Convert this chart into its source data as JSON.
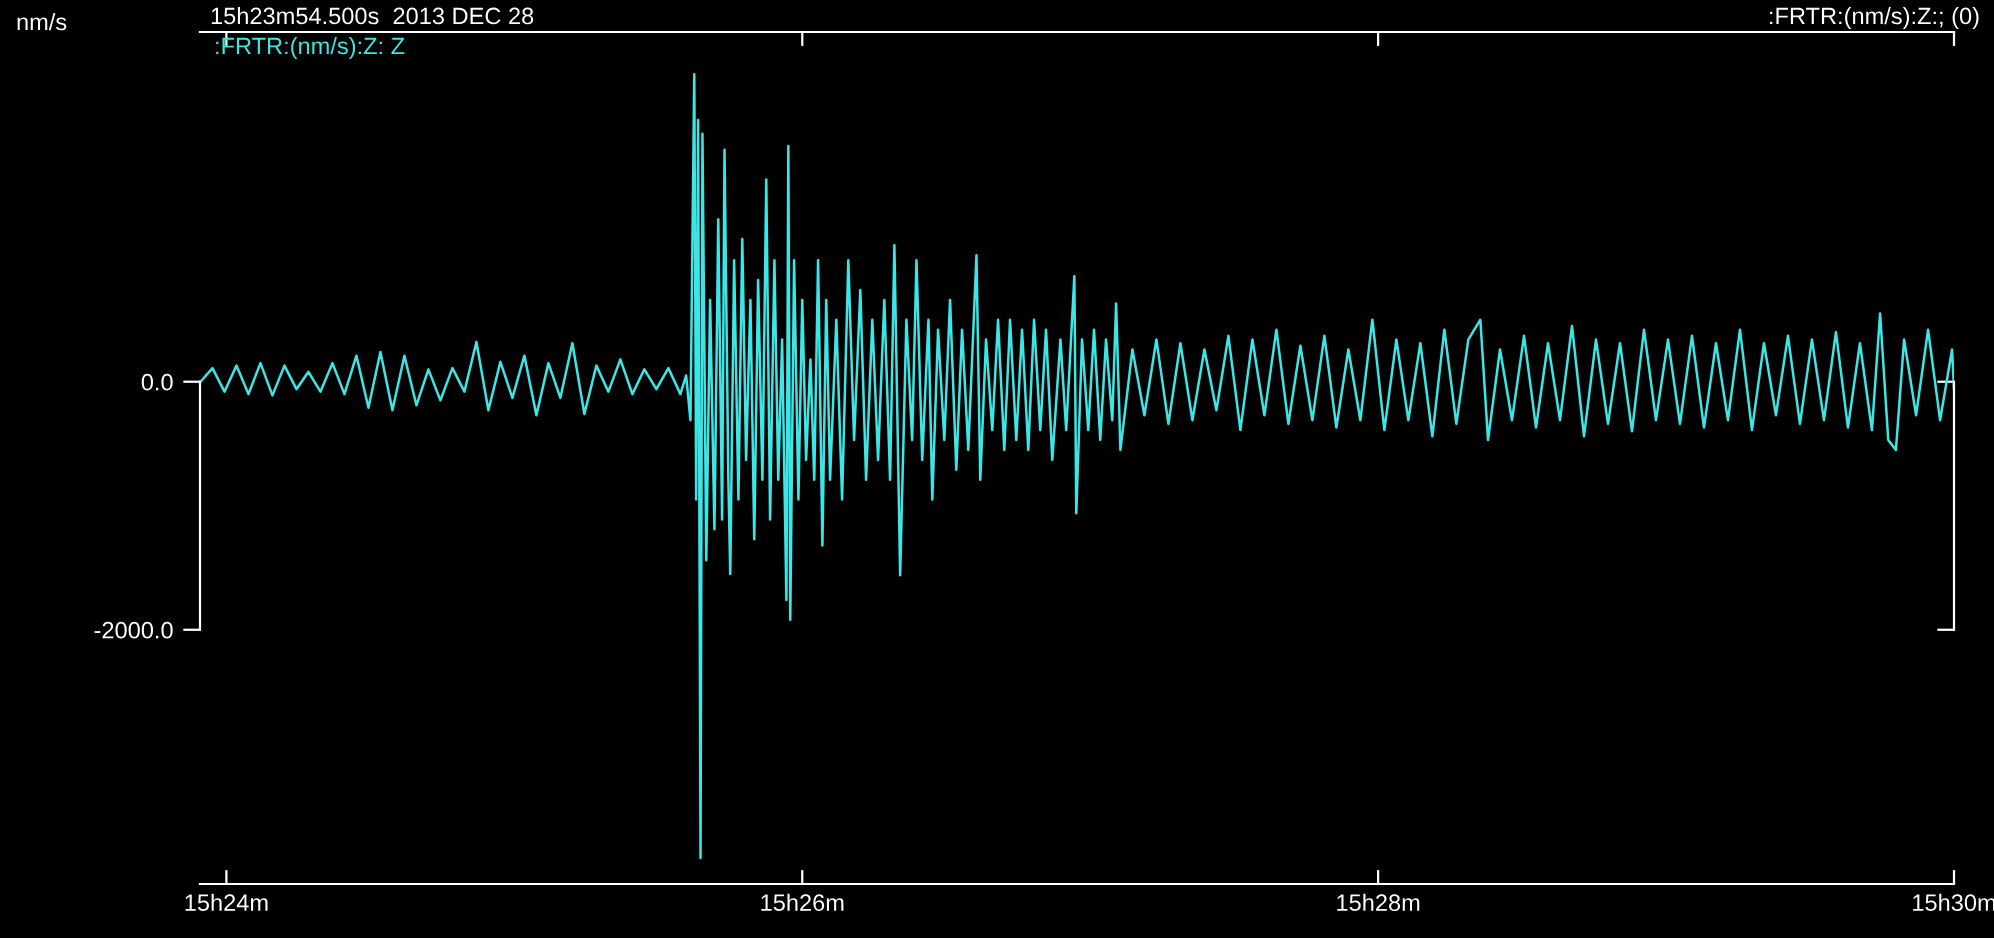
{
  "chart_data": {
    "type": "line",
    "title": "15h23m54.500s  2013 DEC 28",
    "ylabel": "nm/s",
    "annotations": [
      ":FRTR:(nm/s):Z:; (0)"
    ],
    "xlim": [
      "2013-12-28T15:23:54.5",
      "2013-12-28T15:30:00"
    ],
    "xticks": [
      {
        "value": "2013-12-28T15:24",
        "label": "15h24m"
      },
      {
        "value": "2013-12-28T15:26",
        "label": "15h26m"
      },
      {
        "value": "2013-12-28T15:28",
        "label": "15h28m"
      },
      {
        "value": "2013-12-28T15:30",
        "label": "15h30m"
      }
    ],
    "ylim": [
      -4050,
      2820
    ],
    "yticks": [
      {
        "value": -2000,
        "label": "-2000.0"
      },
      {
        "value": 0,
        "label": "0.0"
      }
    ],
    "series": [
      {
        "name": ":FRTR:(nm/s):Z: Z",
        "color": "#3ce6e6",
        "x": [
          "2013-12-28T15:23:54.6",
          "2013-12-28T15:23:57.1",
          "2013-12-28T15:23:59.6",
          "2013-12-28T15:24:02.1",
          "2013-12-28T15:24:04.6",
          "2013-12-28T15:24:07.1",
          "2013-12-28T15:24:09.6",
          "2013-12-28T15:24:12.1",
          "2013-12-28T15:24:14.6",
          "2013-12-28T15:24:17.1",
          "2013-12-28T15:24:19.6",
          "2013-12-28T15:24:22.1",
          "2013-12-28T15:24:24.6",
          "2013-12-28T15:24:27.1",
          "2013-12-28T15:24:29.6",
          "2013-12-28T15:24:32.1",
          "2013-12-28T15:24:34.6",
          "2013-12-28T15:24:37.1",
          "2013-12-28T15:24:39.6",
          "2013-12-28T15:24:42.1",
          "2013-12-28T15:24:44.6",
          "2013-12-28T15:24:47.1",
          "2013-12-28T15:24:49.6",
          "2013-12-28T15:24:52.1",
          "2013-12-28T15:24:54.6",
          "2013-12-28T15:24:57.1",
          "2013-12-28T15:24:59.6",
          "2013-12-28T15:25:02.1",
          "2013-12-28T15:25:04.6",
          "2013-12-28T15:25:07.1",
          "2013-12-28T15:25:09.6",
          "2013-12-28T15:25:12.1",
          "2013-12-28T15:25:14.6",
          "2013-12-28T15:25:17.1",
          "2013-12-28T15:25:19.6",
          "2013-12-28T15:25:22.1",
          "2013-12-28T15:25:24.6",
          "2013-12-28T15:25:27.1",
          "2013-12-28T15:25:29.6",
          "2013-12-28T15:25:32.1",
          "2013-12-28T15:25:34.6",
          "2013-12-28T15:25:35.8",
          "2013-12-28T15:25:36.7",
          "2013-12-28T15:25:37.5",
          "2013-12-28T15:25:37.9",
          "2013-12-28T15:25:38.3",
          "2013-12-28T15:25:38.8",
          "2013-12-28T15:25:39.2",
          "2013-12-28T15:25:40.0",
          "2013-12-28T15:25:40.8",
          "2013-12-28T15:25:41.7",
          "2013-12-28T15:25:42.5",
          "2013-12-28T15:25:43.3",
          "2013-12-28T15:25:43.8",
          "2013-12-28T15:25:44.6",
          "2013-12-28T15:25:45.0",
          "2013-12-28T15:25:45.8",
          "2013-12-28T15:25:46.7",
          "2013-12-28T15:25:47.5",
          "2013-12-28T15:25:48.3",
          "2013-12-28T15:25:49.2",
          "2013-12-28T15:25:50.0",
          "2013-12-28T15:25:50.8",
          "2013-12-28T15:25:51.7",
          "2013-12-28T15:25:52.5",
          "2013-12-28T15:25:53.3",
          "2013-12-28T15:25:54.2",
          "2013-12-28T15:25:55.0",
          "2013-12-28T15:25:55.8",
          "2013-12-28T15:25:56.7",
          "2013-12-28T15:25:57.1",
          "2013-12-28T15:25:57.5",
          "2013-12-28T15:25:58.3",
          "2013-12-28T15:25:59.2",
          "2013-12-28T15:26:00.0",
          "2013-12-28T15:26:00.8",
          "2013-12-28T15:26:01.7",
          "2013-12-28T15:26:02.5",
          "2013-12-28T15:26:03.3",
          "2013-12-28T15:26:04.2",
          "2013-12-28T15:26:05.0",
          "2013-12-28T15:26:05.8",
          "2013-12-28T15:26:07.1",
          "2013-12-28T15:26:08.3",
          "2013-12-28T15:26:09.6",
          "2013-12-28T15:26:10.8",
          "2013-12-28T15:26:12.1",
          "2013-12-28T15:26:13.3",
          "2013-12-28T15:26:14.6",
          "2013-12-28T15:26:15.8",
          "2013-12-28T15:26:17.1",
          "2013-12-28T15:26:18.3",
          "2013-12-28T15:26:19.2",
          "2013-12-28T15:26:20.4",
          "2013-12-28T15:26:21.7",
          "2013-12-28T15:26:22.9",
          "2013-12-28T15:26:23.8",
          "2013-12-28T15:26:25.0",
          "2013-12-28T15:26:26.3",
          "2013-12-28T15:26:27.1",
          "2013-12-28T15:26:28.3",
          "2013-12-28T15:26:29.6",
          "2013-12-28T15:26:30.8",
          "2013-12-28T15:26:32.1",
          "2013-12-28T15:26:33.3",
          "2013-12-28T15:26:34.6",
          "2013-12-28T15:26:36.3",
          "2013-12-28T15:26:37.1",
          "2013-12-28T15:26:38.3",
          "2013-12-28T15:26:39.6",
          "2013-12-28T15:26:40.8",
          "2013-12-28T15:26:42.1",
          "2013-12-28T15:26:43.3",
          "2013-12-28T15:26:44.6",
          "2013-12-28T15:26:45.8",
          "2013-12-28T15:26:47.1",
          "2013-12-28T15:26:48.3",
          "2013-12-28T15:26:49.6",
          "2013-12-28T15:26:50.8",
          "2013-12-28T15:26:52.1",
          "2013-12-28T15:26:53.8",
          "2013-12-28T15:26:55.0",
          "2013-12-28T15:26:56.7",
          "2013-12-28T15:26:57.1",
          "2013-12-28T15:26:58.3",
          "2013-12-28T15:26:59.6",
          "2013-12-28T15:27:00.8",
          "2013-12-28T15:27:02.1",
          "2013-12-28T15:27:03.3",
          "2013-12-28T15:27:04.6",
          "2013-12-28T15:27:05.4",
          "2013-12-28T15:27:06.3",
          "2013-12-28T15:27:08.8",
          "2013-12-28T15:27:11.3",
          "2013-12-28T15:27:13.8",
          "2013-12-28T15:27:16.3",
          "2013-12-28T15:27:18.8",
          "2013-12-28T15:27:21.3",
          "2013-12-28T15:27:23.8",
          "2013-12-28T15:27:26.3",
          "2013-12-28T15:27:28.8",
          "2013-12-28T15:27:31.3",
          "2013-12-28T15:27:33.8",
          "2013-12-28T15:27:36.3",
          "2013-12-28T15:27:38.8",
          "2013-12-28T15:27:41.3",
          "2013-12-28T15:27:43.8",
          "2013-12-28T15:27:46.3",
          "2013-12-28T15:27:48.8",
          "2013-12-28T15:27:51.3",
          "2013-12-28T15:27:53.8",
          "2013-12-28T15:27:56.3",
          "2013-12-28T15:27:58.8",
          "2013-12-28T15:28:01.3",
          "2013-12-28T15:28:03.8",
          "2013-12-28T15:28:06.3",
          "2013-12-28T15:28:08.8",
          "2013-12-28T15:28:11.3",
          "2013-12-28T15:28:13.8",
          "2013-12-28T15:28:16.3",
          "2013-12-28T15:28:18.8",
          "2013-12-28T15:28:21.3",
          "2013-12-28T15:28:22.9",
          "2013-12-28T15:28:25.4",
          "2013-12-28T15:28:27.9",
          "2013-12-28T15:28:30.4",
          "2013-12-28T15:28:32.9",
          "2013-12-28T15:28:35.4",
          "2013-12-28T15:28:37.9",
          "2013-12-28T15:28:40.4",
          "2013-12-28T15:28:42.9",
          "2013-12-28T15:28:45.4",
          "2013-12-28T15:28:47.9",
          "2013-12-28T15:28:50.4",
          "2013-12-28T15:28:52.9",
          "2013-12-28T15:28:55.4",
          "2013-12-28T15:28:57.9",
          "2013-12-28T15:29:00.4",
          "2013-12-28T15:29:02.9",
          "2013-12-28T15:29:05.4",
          "2013-12-28T15:29:07.9",
          "2013-12-28T15:29:10.4",
          "2013-12-28T15:29:12.9",
          "2013-12-28T15:29:15.4",
          "2013-12-28T15:29:17.9",
          "2013-12-28T15:29:20.4",
          "2013-12-28T15:29:22.9",
          "2013-12-28T15:29:25.4",
          "2013-12-28T15:29:27.9",
          "2013-12-28T15:29:30.4",
          "2013-12-28T15:29:32.9",
          "2013-12-28T15:29:35.4",
          "2013-12-28T15:29:37.9",
          "2013-12-28T15:29:40.4",
          "2013-12-28T15:29:42.9",
          "2013-12-28T15:29:44.6",
          "2013-12-28T15:29:46.3",
          "2013-12-28T15:29:47.9",
          "2013-12-28T15:29:49.6",
          "2013-12-28T15:29:52.1",
          "2013-12-28T15:29:54.6",
          "2013-12-28T15:29:57.1",
          "2013-12-28T15:29:59.6",
          "2013-12-28T15:30:00.0"
        ],
        "values": [
          0,
          110,
          -80,
          130,
          -100,
          150,
          -110,
          130,
          -60,
          80,
          -80,
          150,
          -100,
          210,
          -210,
          240,
          -230,
          210,
          -190,
          100,
          -150,
          110,
          -80,
          320,
          -230,
          160,
          -130,
          210,
          -270,
          150,
          -130,
          310,
          -260,
          130,
          -80,
          180,
          -100,
          100,
          -60,
          110,
          -100,
          50,
          -310,
          2480,
          -950,
          2110,
          -3840,
          2000,
          -1440,
          660,
          -1190,
          1310,
          -1110,
          1870,
          -790,
          -1550,
          980,
          -950,
          1150,
          -630,
          660,
          -1270,
          820,
          -790,
          1630,
          -1110,
          980,
          -790,
          340,
          -1760,
          1900,
          -1920,
          980,
          -950,
          660,
          -630,
          180,
          -790,
          980,
          -1320,
          660,
          -790,
          500,
          -950,
          980,
          -470,
          740,
          -790,
          500,
          -630,
          660,
          -790,
          1100,
          -1560,
          500,
          -470,
          980,
          -630,
          500,
          -950,
          420,
          -470,
          660,
          -710,
          420,
          -550,
          1020,
          -790,
          340,
          -390,
          500,
          -550,
          500,
          -470,
          420,
          -550,
          500,
          -390,
          420,
          -630,
          340,
          -390,
          850,
          -1060,
          340,
          -390,
          420,
          -470,
          340,
          -310,
          630,
          -550,
          260,
          -270,
          340,
          -340,
          310,
          -310,
          260,
          -230,
          370,
          -390,
          340,
          -270,
          420,
          -340,
          290,
          -310,
          370,
          -370,
          260,
          -310,
          500,
          -390,
          340,
          -310,
          310,
          -440,
          420,
          -340,
          340,
          500,
          -470,
          260,
          -310,
          370,
          -370,
          310,
          -310,
          450,
          -440,
          340,
          -340,
          310,
          -400,
          420,
          -310,
          340,
          -340,
          370,
          -370,
          310,
          -310,
          420,
          -390,
          310,
          -270,
          370,
          -340,
          340,
          -310,
          400,
          -370,
          310,
          -390,
          550,
          -470,
          -550,
          340,
          -270,
          420,
          -310,
          260,
          -60
        ]
      }
    ]
  }
}
